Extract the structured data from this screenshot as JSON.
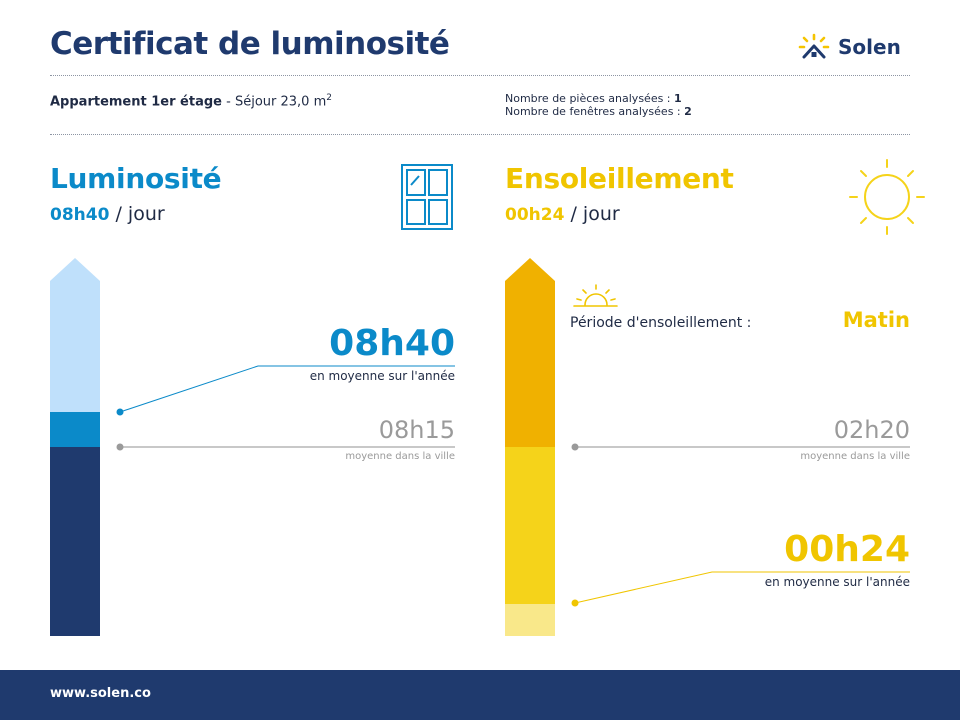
{
  "header": {
    "title": "Certificat de luminosité",
    "logo_text": "Solen"
  },
  "property": {
    "name": "Appartement 1er étage",
    "room": "Séjour 23,0 m",
    "superscript": "2",
    "rooms_label": "Nombre de pièces analysées :",
    "rooms_count": "1",
    "windows_label": "Nombre de fenêtres analysées :",
    "windows_count": "2"
  },
  "luminosite": {
    "title": "Luminosité",
    "daily_value": "08h40",
    "daily_suffix": "/ jour",
    "annual_value": "08h40",
    "annual_caption": "en moyenne sur l'année",
    "city_value": "08h15",
    "city_caption": "moyenne dans la ville",
    "icon": "window-icon",
    "color": "#0b8ac9"
  },
  "ensoleillement": {
    "title": "Ensoleillement",
    "daily_value": "00h24",
    "daily_suffix": "/ jour",
    "period_label": "Période d'ensoleillement :",
    "period_value": "Matin",
    "city_value": "02h20",
    "city_caption": "moyenne dans la ville",
    "annual_value": "00h24",
    "annual_caption": "en moyenne sur l'année",
    "icon": "sun-icon",
    "period_icon": "sunrise-icon",
    "color": "#f0c500"
  },
  "footer": {
    "url": "www.solen.co"
  },
  "colors": {
    "navy": "#1f3a6e",
    "blue": "#0b8ac9",
    "light_blue": "#bfe0fb",
    "yellow": "#f5d31a",
    "orange": "#f0b100",
    "pale_yellow": "#f9e88a",
    "gray": "#9a9a9a"
  }
}
